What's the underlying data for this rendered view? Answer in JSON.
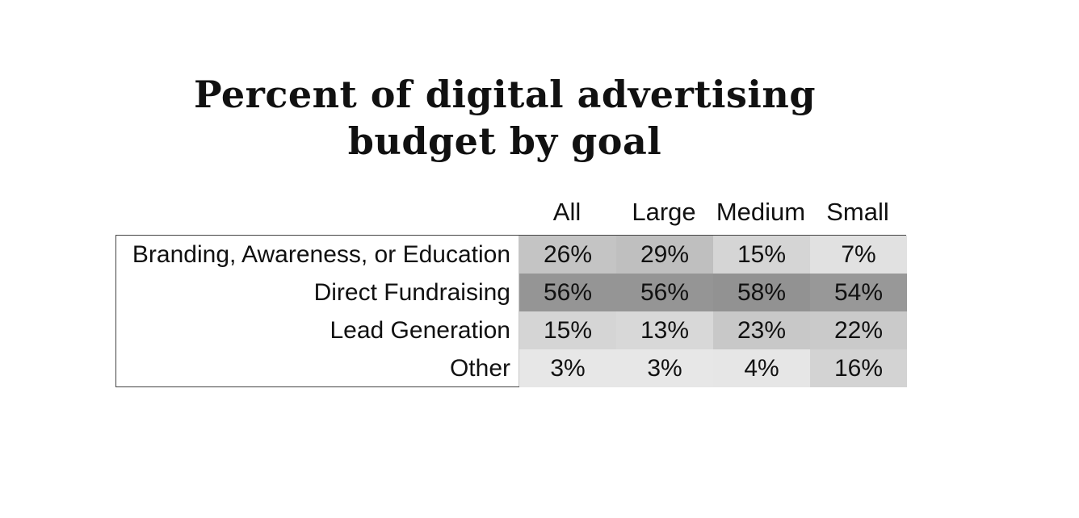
{
  "chart_data": {
    "type": "heatmap",
    "title_lines": [
      "Percent of digital advertising",
      "budget by goal"
    ],
    "columns": [
      "All",
      "Large",
      "Medium",
      "Small"
    ],
    "rows": [
      {
        "label": "Branding, Awareness, or Education",
        "values": [
          26,
          29,
          15,
          7
        ],
        "display": [
          "26%",
          "29%",
          "15%",
          "7%"
        ]
      },
      {
        "label": "Direct Fundraising",
        "values": [
          56,
          56,
          58,
          54
        ],
        "display": [
          "56%",
          "56%",
          "58%",
          "54%"
        ]
      },
      {
        "label": "Lead Generation",
        "values": [
          15,
          13,
          23,
          22
        ],
        "display": [
          "15%",
          "13%",
          "23%",
          "22%"
        ]
      },
      {
        "label": "Other",
        "values": [
          3,
          3,
          4,
          16
        ],
        "display": [
          "3%",
          "3%",
          "4%",
          "16%"
        ]
      }
    ],
    "unit": "%",
    "color_scale": {
      "low": "#ececec",
      "high": "#8f8f8f",
      "min": 0,
      "max": 60
    }
  }
}
